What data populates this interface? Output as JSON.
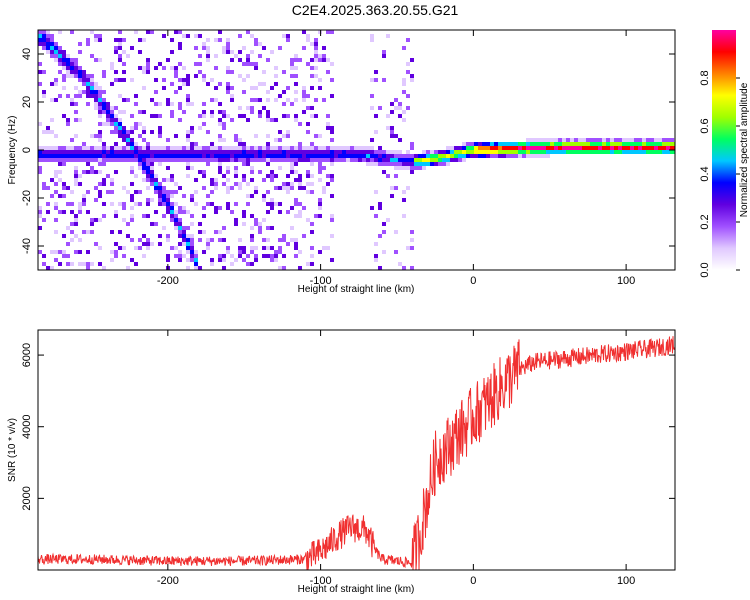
{
  "title": "C2E4.2025.363.20.55.G21",
  "chart_data": [
    {
      "type": "heatmap",
      "name": "spectrogram",
      "xlabel": "Height of straight line (km)",
      "ylabel": "Frequency (Hz)",
      "xlim": [
        -285,
        132
      ],
      "ylim": [
        -50,
        50
      ],
      "xticks": [
        -200,
        -100,
        0,
        100
      ],
      "xtick_labels": [
        "-200",
        "-100",
        "0",
        "100"
      ],
      "yticks": [
        -40,
        -20,
        0,
        20,
        40
      ],
      "ytick_labels": [
        "-40",
        "-20",
        "0",
        "20",
        "40"
      ],
      "features": [
        {
          "name": "direct-line-track",
          "x": [
            -285,
            -75,
            -40,
            -20,
            0,
            50,
            132
          ],
          "y": [
            -2,
            -2,
            -5,
            -3,
            0,
            1,
            1
          ]
        },
        {
          "name": "reflected-line-track",
          "x": [
            -285,
            -255,
            -230,
            -200,
            -180
          ],
          "y": [
            48,
            30,
            8,
            -22,
            -48
          ]
        }
      ],
      "colorbar": {
        "label": "Normalized spectral amplitude",
        "range": [
          0,
          1
        ],
        "ticks": [
          0.0,
          0.2,
          0.4,
          0.6,
          0.8
        ],
        "tick_labels": [
          "0.0",
          "0.2",
          "0.4",
          "0.6",
          "0.8"
        ],
        "colors": [
          "#ffffff",
          "#e0c8ff",
          "#a050ff",
          "#6000e0",
          "#0000ff",
          "#00c8ff",
          "#00ff60",
          "#a0ff00",
          "#ffff00",
          "#ff8000",
          "#ff0000",
          "#ff00a0"
        ]
      }
    },
    {
      "type": "line",
      "name": "snr",
      "xlabel": "Height of straight line (km)",
      "ylabel": "SNR (10 * v/v)",
      "xlim": [
        -285,
        132
      ],
      "ylim": [
        0,
        6700
      ],
      "xticks": [
        -200,
        -100,
        0,
        100
      ],
      "xtick_labels": [
        "-200",
        "-100",
        "0",
        "100"
      ],
      "yticks": [
        2000,
        4000,
        6000
      ],
      "ytick_labels": [
        "2000",
        "4000",
        "6000"
      ],
      "color": "#f03030",
      "x": [
        -285,
        -250,
        -200,
        -150,
        -110,
        -100,
        -90,
        -80,
        -70,
        -65,
        -60,
        -50,
        -40,
        -35,
        -30,
        -25,
        -20,
        -15,
        -10,
        -5,
        0,
        10,
        20,
        30,
        40,
        60,
        80,
        100,
        120,
        132
      ],
      "y": [
        300,
        300,
        250,
        250,
        300,
        500,
        900,
        1200,
        1100,
        600,
        300,
        250,
        200,
        1000,
        2000,
        3000,
        3300,
        3500,
        3800,
        4000,
        4300,
        4700,
        5200,
        5600,
        5800,
        5900,
        6000,
        6100,
        6200,
        6300
      ]
    }
  ]
}
